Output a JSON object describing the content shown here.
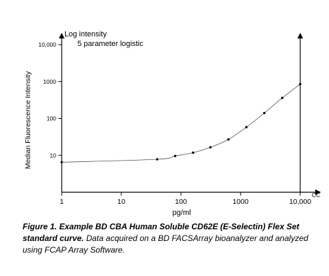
{
  "chart_data": {
    "type": "scatter",
    "title": "5 parameter logistic",
    "top_axis_label": "Log intensity",
    "xlabel": "pg/ml",
    "ylabel": "Median Fluorescence Intensity",
    "x_end_label": "CC",
    "xscale": "log",
    "yscale": "log",
    "xlim": [
      1,
      10000
    ],
    "ylim": [
      1,
      10000
    ],
    "x_ticks": [
      {
        "value": 1,
        "label": "1"
      },
      {
        "value": 10,
        "label": "10"
      },
      {
        "value": 100,
        "label": "100"
      },
      {
        "value": 1000,
        "label": "1000"
      },
      {
        "value": 10000,
        "label": "10,000"
      }
    ],
    "y_ticks": [
      {
        "value": 10,
        "label": "10"
      },
      {
        "value": 100,
        "label": "100"
      },
      {
        "value": 1000,
        "label": "1000"
      },
      {
        "value": 10000,
        "label": "10,000"
      }
    ],
    "grid": false,
    "series": [
      {
        "points": [
          {
            "x": 1,
            "y": 6.5
          },
          {
            "x": 40,
            "y": 7.8
          },
          {
            "x": 80,
            "y": 9.6
          },
          {
            "x": 160,
            "y": 11.8
          },
          {
            "x": 312,
            "y": 16.5
          },
          {
            "x": 625,
            "y": 27
          },
          {
            "x": 1250,
            "y": 58
          },
          {
            "x": 2500,
            "y": 140
          },
          {
            "x": 5000,
            "y": 360
          },
          {
            "x": 10000,
            "y": 850
          }
        ]
      }
    ]
  },
  "caption": {
    "bold_text": "Figure 1. Example BD CBA Human Soluble CD62E (E-Selectin) Flex Set standard curve.",
    "text": " Data acquired on a BD FACSArray bioanalyzer and analyzed using FCAP Array Software."
  }
}
